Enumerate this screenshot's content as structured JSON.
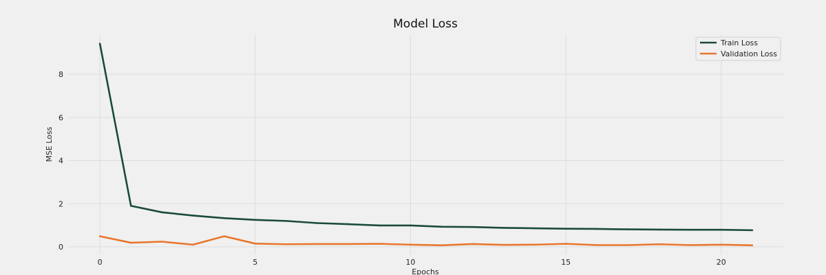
{
  "chart_data": {
    "type": "line",
    "title": "Model Loss",
    "xlabel": "Epochs",
    "ylabel": "MSE Loss",
    "x": [
      0,
      1,
      2,
      3,
      4,
      5,
      6,
      7,
      8,
      9,
      10,
      11,
      12,
      13,
      14,
      15,
      16,
      17,
      18,
      19,
      20,
      21
    ],
    "xticks": [
      0,
      5,
      10,
      15,
      20
    ],
    "yticks": [
      0,
      2,
      4,
      6,
      8
    ],
    "xlim": [
      -1,
      22
    ],
    "ylim": [
      -0.35,
      9.85
    ],
    "grid": true,
    "legend_position": "top-right",
    "series": [
      {
        "name": "Train Loss",
        "color": "#1a4a3a",
        "values": [
          9.42,
          1.9,
          1.6,
          1.45,
          1.33,
          1.25,
          1.2,
          1.1,
          1.05,
          0.99,
          0.99,
          0.93,
          0.92,
          0.88,
          0.86,
          0.84,
          0.83,
          0.81,
          0.8,
          0.79,
          0.79,
          0.77
        ]
      },
      {
        "name": "Validation Loss",
        "color": "#e8762e",
        "values": [
          0.49,
          0.19,
          0.24,
          0.1,
          0.49,
          0.15,
          0.12,
          0.13,
          0.13,
          0.14,
          0.1,
          0.07,
          0.13,
          0.09,
          0.1,
          0.14,
          0.08,
          0.08,
          0.12,
          0.08,
          0.1,
          0.07
        ]
      }
    ]
  }
}
